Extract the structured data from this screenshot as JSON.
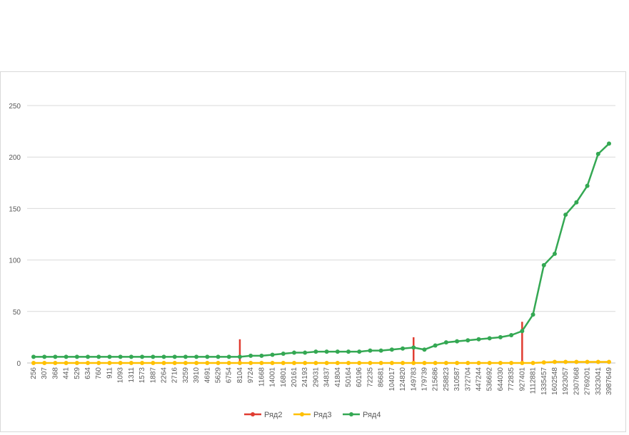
{
  "chart_data": {
    "type": "line",
    "title": "",
    "xlabel": "",
    "ylabel": "",
    "ylim": [
      0,
      250
    ],
    "y_ticks": [
      0,
      50,
      100,
      150,
      200,
      250
    ],
    "grid": "horizontal",
    "legend_position": "bottom",
    "categories": [
      "256",
      "307",
      "368",
      "441",
      "529",
      "634",
      "760",
      "911",
      "1093",
      "1311",
      "1573",
      "1887",
      "2264",
      "2716",
      "3259",
      "3910",
      "4691",
      "5629",
      "6754",
      "8104",
      "9724",
      "11668",
      "14001",
      "16801",
      "20161",
      "24193",
      "29031",
      "34837",
      "41804",
      "50164",
      "60196",
      "72235",
      "86681",
      "104017",
      "124820",
      "149783",
      "179739",
      "215686",
      "258823",
      "310587",
      "372704",
      "447244",
      "536692",
      "644030",
      "772835",
      "927401",
      "1112881",
      "1335457",
      "1602548",
      "1923057",
      "2307668",
      "2769201",
      "3323041",
      "3987649"
    ],
    "series": [
      {
        "name": "Ряд2",
        "color": "#e03c31",
        "markers": false,
        "segments": [
          {
            "x": "8104",
            "y": [
              0,
              23
            ]
          },
          {
            "x": "149783",
            "y": [
              0,
              25
            ]
          },
          {
            "x": "927401",
            "y": [
              0,
              40
            ]
          }
        ]
      },
      {
        "name": "Ряд3",
        "color": "#ffc000",
        "markers": true,
        "values": [
          0,
          0,
          0,
          0,
          0,
          0,
          0,
          0,
          0,
          0,
          0,
          0,
          0,
          0,
          0,
          0,
          0,
          0,
          0,
          0,
          0,
          0,
          0,
          0,
          0,
          0,
          0,
          0,
          0,
          0,
          0,
          0,
          0,
          0,
          0,
          0,
          0,
          0,
          0,
          0,
          0,
          0,
          0,
          0,
          0,
          0,
          0,
          0.5,
          1,
          1,
          1,
          1,
          1,
          1
        ]
      },
      {
        "name": "Ряд4",
        "color": "#34a853",
        "markers": true,
        "values": [
          6,
          6,
          6,
          6,
          6,
          6,
          6,
          6,
          6,
          6,
          6,
          6,
          6,
          6,
          6,
          6,
          6,
          6,
          6,
          6,
          7,
          7,
          8,
          9,
          10,
          10,
          11,
          11,
          11,
          11,
          11,
          12,
          12,
          13,
          14,
          15,
          13,
          17,
          20,
          21,
          22,
          23,
          24,
          25,
          27,
          31,
          47,
          95,
          106,
          144,
          156,
          172,
          203,
          213
        ]
      }
    ]
  }
}
